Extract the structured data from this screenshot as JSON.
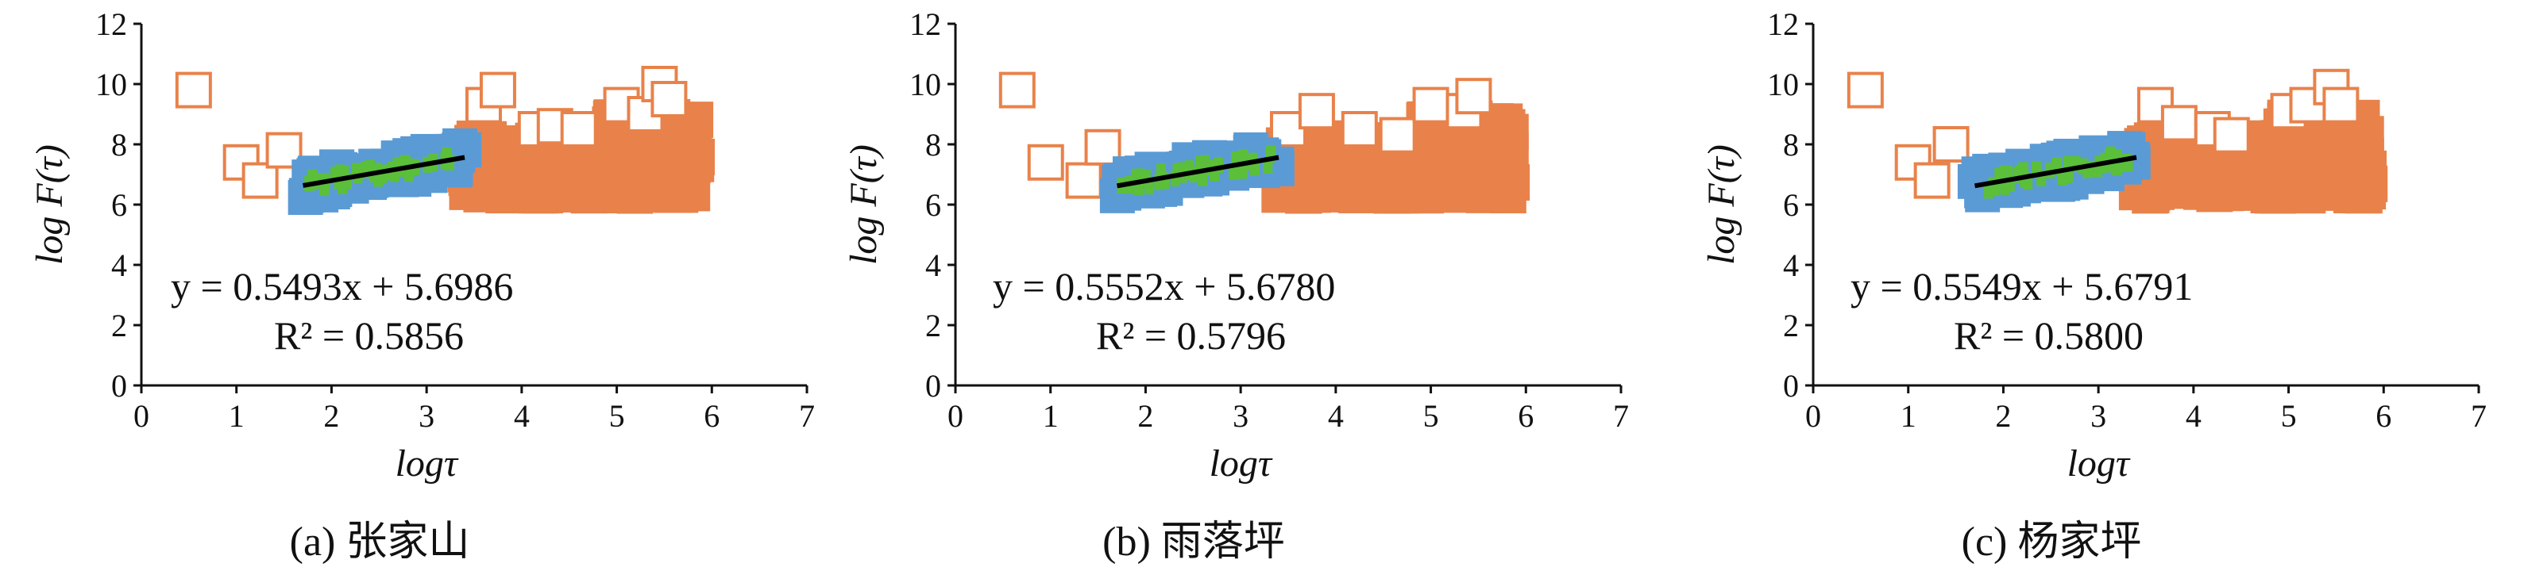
{
  "colors": {
    "outlier": "#E8824A",
    "fill": "#E8824A",
    "blue": "#5B9BD5",
    "green": "#5BBF3A",
    "fit_line": "#000000",
    "axis": "#111111"
  },
  "chart_data": [
    {
      "type": "scatter",
      "caption": "(a) 张家山",
      "xlabel": "logτ",
      "ylabel": "log F(τ)",
      "xlim": [
        0,
        7
      ],
      "ylim": [
        0,
        12
      ],
      "xticks": [
        "0",
        "1",
        "2",
        "3",
        "4",
        "5",
        "6",
        "7"
      ],
      "yticks": [
        "0",
        "2",
        "4",
        "6",
        "8",
        "10",
        "12"
      ],
      "grid": false,
      "fit": {
        "slope": 0.5493,
        "intercept": 5.6986,
        "x_range": [
          1.7,
          3.4
        ]
      },
      "equation": "y = 0.5493x + 5.6986",
      "r2": "R² = 0.5856",
      "outliers": [
        [
          0.55,
          9.8
        ],
        [
          1.05,
          7.4
        ],
        [
          1.25,
          6.8
        ],
        [
          1.5,
          7.8
        ],
        [
          3.6,
          9.3
        ],
        [
          3.75,
          9.8
        ],
        [
          4.15,
          8.5
        ],
        [
          4.35,
          8.6
        ],
        [
          4.6,
          8.5
        ],
        [
          5.05,
          9.3
        ],
        [
          5.3,
          9.0
        ],
        [
          5.45,
          10.0
        ],
        [
          5.55,
          9.5
        ]
      ]
    },
    {
      "type": "scatter",
      "caption": "(b) 雨落坪",
      "xlabel": "logτ",
      "ylabel": "log F(τ)",
      "xlim": [
        0,
        7
      ],
      "ylim": [
        0,
        12
      ],
      "xticks": [
        "0",
        "1",
        "2",
        "3",
        "4",
        "5",
        "6",
        "7"
      ],
      "yticks": [
        "0",
        "2",
        "4",
        "6",
        "8",
        "10",
        "12"
      ],
      "grid": false,
      "fit": {
        "slope": 0.5552,
        "intercept": 5.678,
        "x_range": [
          1.7,
          3.4
        ]
      },
      "equation": "y = 0.5552x + 5.6780",
      "r2": "R² = 0.5796",
      "outliers": [
        [
          0.65,
          9.8
        ],
        [
          0.95,
          7.4
        ],
        [
          1.35,
          6.8
        ],
        [
          1.55,
          7.9
        ],
        [
          3.5,
          8.5
        ],
        [
          3.8,
          9.1
        ],
        [
          4.25,
          8.5
        ],
        [
          4.65,
          8.3
        ],
        [
          5.0,
          9.3
        ],
        [
          5.35,
          9.1
        ],
        [
          5.45,
          9.6
        ]
      ]
    },
    {
      "type": "scatter",
      "caption": "(c) 杨家坪",
      "xlabel": "logτ",
      "ylabel": "log F(τ)",
      "xlim": [
        0,
        7
      ],
      "ylim": [
        0,
        12
      ],
      "xticks": [
        "0",
        "1",
        "2",
        "3",
        "4",
        "5",
        "6",
        "7"
      ],
      "yticks": [
        "0",
        "2",
        "4",
        "6",
        "8",
        "10",
        "12"
      ],
      "grid": false,
      "fit": {
        "slope": 0.5549,
        "intercept": 5.6791,
        "x_range": [
          1.7,
          3.4
        ]
      },
      "equation": "y = 0.5549x + 5.6791",
      "r2": "R² = 0.5800",
      "outliers": [
        [
          0.55,
          9.8
        ],
        [
          1.05,
          7.4
        ],
        [
          1.25,
          6.8
        ],
        [
          1.45,
          8.0
        ],
        [
          3.6,
          9.3
        ],
        [
          3.85,
          8.7
        ],
        [
          4.2,
          8.5
        ],
        [
          4.4,
          8.3
        ],
        [
          5.0,
          9.1
        ],
        [
          5.2,
          9.3
        ],
        [
          5.45,
          9.9
        ],
        [
          5.55,
          9.3
        ]
      ]
    }
  ]
}
